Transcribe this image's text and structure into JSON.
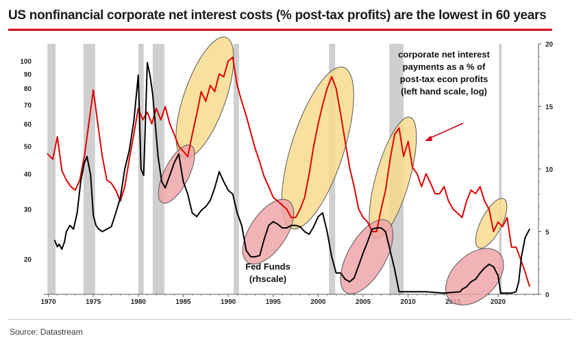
{
  "title": "US nonfinancial corporate net interest costs (% post-tax profits) are the lowest in 60 years",
  "source": "Source: Datastream",
  "colors": {
    "accent": "#d6001c",
    "interest_line": "#e00000",
    "fedfunds_line": "#000000",
    "recession": "#cfcfcf",
    "highlight_yellow": "#f6d98a",
    "highlight_pink": "#eea2a6"
  },
  "chart_data": {
    "type": "line",
    "x_ticks": [
      "1970",
      "1975",
      "1980",
      "1985",
      "1990",
      "1995",
      "2000",
      "2005",
      "2010",
      "2015",
      "2020"
    ],
    "left_axis": {
      "scale": "log",
      "range": [
        15,
        115
      ],
      "tick_labels": [
        "20",
        "30",
        "40",
        "50",
        "60",
        "70",
        "80",
        "90",
        "100"
      ]
    },
    "right_axis": {
      "scale": "linear",
      "range": [
        0,
        20
      ],
      "tick_labels": [
        "0",
        "5",
        "10",
        "15",
        "20"
      ]
    },
    "recessions": [
      [
        1969.9,
        1970.8
      ],
      [
        1973.9,
        1975.2
      ],
      [
        1980.0,
        1980.6
      ],
      [
        1981.6,
        1982.9
      ],
      [
        1990.6,
        1991.2
      ],
      [
        2001.2,
        2001.9
      ],
      [
        2007.9,
        2009.5
      ],
      [
        2020.1,
        2020.4
      ]
    ],
    "annotations": [
      "corporate net interest",
      "payments as a % of",
      "post-tax econ profits",
      "(left hand scale, log)",
      "Fed Funds",
      "(rhscale)"
    ],
    "series": [
      {
        "axis": "left",
        "x": [
          1969.9,
          1970.5,
          1971.0,
          1971.5,
          1972.0,
          1972.5,
          1973.0,
          1973.5,
          1974.0,
          1974.5,
          1975.0,
          1975.5,
          1976.0,
          1976.5,
          1977.0,
          1977.5,
          1978.0,
          1978.5,
          1979.0,
          1979.5,
          1980.0,
          1980.5,
          1981.0,
          1981.5,
          1982.0,
          1982.5,
          1983.0,
          1983.5,
          1984.0,
          1984.5,
          1985.0,
          1985.5,
          1986.0,
          1986.5,
          1987.0,
          1987.5,
          1988.0,
          1988.5,
          1989.0,
          1989.5,
          1990.0,
          1990.5,
          1991.0,
          1991.5,
          1992.0,
          1992.5,
          1993.0,
          1993.5,
          1994.0,
          1994.5,
          1995.0,
          1995.5,
          1996.0,
          1996.5,
          1997.0,
          1997.5,
          1998.0,
          1998.5,
          1999.0,
          1999.5,
          2000.0,
          2000.5,
          2001.0,
          2001.5,
          2002.0,
          2002.5,
          2003.0,
          2003.5,
          2004.0,
          2004.5,
          2005.0,
          2005.5,
          2006.0,
          2006.5,
          2007.0,
          2007.5,
          2008.0,
          2008.5,
          2009.0,
          2009.5,
          2010.0,
          2010.5,
          2011.0,
          2011.5,
          2012.0,
          2012.5,
          2013.0,
          2013.5,
          2014.0,
          2014.5,
          2015.0,
          2015.5,
          2016.0,
          2016.5,
          2017.0,
          2017.5,
          2018.0,
          2018.5,
          2019.0,
          2019.5,
          2020.0,
          2020.5,
          2021.0,
          2021.5,
          2022.0,
          2022.5,
          2023.0,
          2023.5
        ],
        "values": [
          47,
          45,
          54,
          41,
          38,
          36,
          35,
          38,
          46,
          60,
          79,
          60,
          46,
          38,
          37,
          35,
          32,
          36,
          45,
          55,
          68,
          62,
          66,
          60,
          68,
          62,
          69,
          60,
          55,
          50,
          48,
          46,
          55,
          65,
          78,
          72,
          82,
          78,
          90,
          88,
          100,
          103,
          82,
          72,
          64,
          56,
          49,
          44,
          39,
          36,
          33,
          32,
          31,
          30,
          28,
          28,
          30,
          33,
          40,
          50,
          60,
          70,
          80,
          88,
          80,
          65,
          52,
          42,
          36,
          30,
          28,
          27,
          25,
          25,
          30,
          35,
          45,
          55,
          58,
          46,
          52,
          42,
          40,
          36,
          40,
          37,
          34,
          34,
          36,
          32,
          30,
          29,
          28,
          32,
          35,
          34,
          36,
          32,
          30,
          25,
          27,
          26,
          28,
          22,
          22,
          20,
          18,
          16
        ]
      },
      {
        "axis": "right",
        "x": [
          1970.7,
          1971.0,
          1971.2,
          1971.5,
          1971.8,
          1972.0,
          1972.4,
          1972.8,
          1973.2,
          1973.6,
          1974.0,
          1974.3,
          1974.7,
          1975.0,
          1975.3,
          1975.6,
          1976.0,
          1976.5,
          1977.0,
          1977.5,
          1978.0,
          1978.5,
          1979.0,
          1979.5,
          1980.0,
          1980.3,
          1980.6,
          1981.0,
          1981.3,
          1981.6,
          1981.9,
          1982.2,
          1982.6,
          1983.0,
          1983.5,
          1984.0,
          1984.5,
          1985.0,
          1985.5,
          1986.0,
          1986.5,
          1987.0,
          1987.5,
          1988.0,
          1988.5,
          1989.0,
          1989.5,
          1990.0,
          1990.5,
          1991.0,
          1991.5,
          1992.0,
          1992.5,
          1993.0,
          1993.5,
          1994.0,
          1994.5,
          1995.0,
          1995.5,
          1996.0,
          1996.5,
          1997.0,
          1997.5,
          1998.0,
          1998.5,
          1999.0,
          1999.5,
          2000.0,
          2000.5,
          2001.0,
          2001.5,
          2002.0,
          2002.5,
          2003.0,
          2003.5,
          2004.0,
          2004.5,
          2005.0,
          2005.5,
          2006.0,
          2006.5,
          2007.0,
          2007.5,
          2008.0,
          2008.5,
          2009.0,
          2010.0,
          2012.0,
          2014.0,
          2015.8,
          2016.0,
          2016.5,
          2017.0,
          2017.5,
          2018.0,
          2018.5,
          2019.0,
          2019.5,
          2020.0,
          2020.3,
          2021.0,
          2021.5,
          2022.0,
          2022.3,
          2022.6,
          2023.0,
          2023.5
        ],
        "values": [
          4.3,
          3.8,
          4.0,
          3.6,
          4.2,
          5.0,
          5.5,
          5.2,
          6.5,
          9.0,
          10.5,
          11.0,
          9.5,
          6.3,
          5.5,
          5.2,
          5.0,
          5.2,
          5.4,
          6.5,
          7.7,
          10.0,
          11.5,
          13.8,
          17.5,
          10.0,
          9.5,
          18.5,
          17.5,
          16.0,
          13.5,
          11.0,
          9.0,
          8.5,
          9.5,
          10.5,
          11.2,
          9.0,
          8.0,
          6.5,
          6.2,
          6.7,
          7.0,
          7.5,
          8.5,
          9.8,
          9.0,
          8.3,
          8.0,
          6.5,
          5.5,
          3.5,
          3.0,
          3.0,
          3.1,
          4.4,
          5.5,
          5.8,
          5.6,
          5.3,
          5.3,
          5.5,
          5.5,
          5.4,
          5.0,
          4.8,
          5.4,
          6.2,
          6.5,
          5.0,
          3.0,
          1.7,
          1.7,
          1.2,
          1.0,
          1.3,
          2.3,
          3.3,
          4.2,
          5.2,
          5.3,
          5.3,
          5.0,
          3.5,
          2.0,
          0.2,
          0.2,
          0.2,
          0.1,
          0.2,
          0.4,
          0.6,
          1.0,
          1.2,
          1.7,
          2.1,
          2.4,
          2.2,
          1.5,
          0.1,
          0.1,
          0.1,
          0.2,
          1.0,
          3.0,
          4.5,
          5.2
        ]
      }
    ],
    "highlights_yellow": [
      [
        1985.3,
        1989.5,
        48,
        115
      ],
      [
        1997.3,
        2002.6,
        27,
        90
      ],
      [
        2006.6,
        2010.0,
        25,
        60
      ],
      [
        2018.2,
        2020.3,
        23,
        31
      ]
    ],
    "highlights_pink": [
      [
        1983.0,
        1985.5,
        7.8,
        11.4
      ],
      [
        1992.6,
        1996.3,
        3.0,
        7.0
      ],
      [
        2003.5,
        2007.3,
        0.6,
        5.4
      ],
      [
        2015.2,
        2019.6,
        -0.1,
        2.9
      ]
    ]
  }
}
